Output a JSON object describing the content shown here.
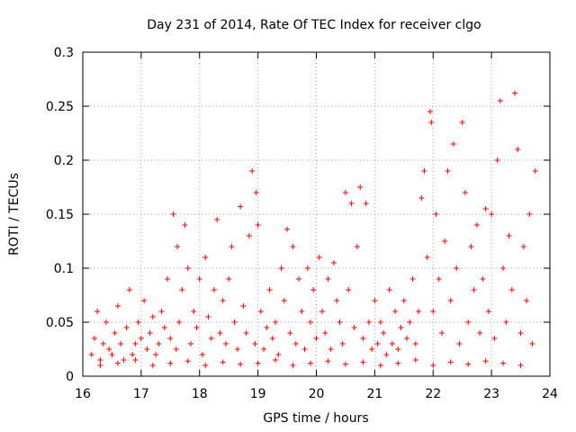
{
  "chart_data": {
    "type": "scatter",
    "title": "Day 231 of 2014, Rate Of TEC Index for receiver clgo",
    "xlabel": "GPS time / hours",
    "ylabel": "ROTI / TECUs",
    "xlim": [
      16,
      24
    ],
    "ylim": [
      0,
      0.3
    ],
    "x_ticks": [
      16,
      17,
      18,
      19,
      20,
      21,
      22,
      23,
      24
    ],
    "y_ticks": [
      0,
      0.05,
      0.1,
      0.15,
      0.2,
      0.25,
      0.3
    ],
    "x_tick_labels": [
      "16",
      "17",
      "18",
      "19",
      "20",
      "21",
      "22",
      "23",
      "24"
    ],
    "y_tick_labels": [
      "0",
      "0.05",
      "0.1",
      "0.15",
      "0.2",
      "0.25",
      "0.3"
    ],
    "grid": true,
    "marker": "+",
    "color": "#ff0000",
    "series": [
      {
        "name": "ROTI",
        "x": [
          16.15,
          16.2,
          16.25,
          16.3,
          16.35,
          16.4,
          16.45,
          16.5,
          16.55,
          16.6,
          16.65,
          16.7,
          16.75,
          16.8,
          16.85,
          16.9,
          16.95,
          17.0,
          17.05,
          17.1,
          17.15,
          17.2,
          17.25,
          17.3,
          17.35,
          17.4,
          17.45,
          17.5,
          17.55,
          17.6,
          17.62,
          17.65,
          17.7,
          17.75,
          17.8,
          17.85,
          17.9,
          17.95,
          18.0,
          18.05,
          18.1,
          18.15,
          18.2,
          18.25,
          18.3,
          18.35,
          18.4,
          18.45,
          18.5,
          18.55,
          18.6,
          18.65,
          18.7,
          18.75,
          18.8,
          18.85,
          18.9,
          18.95,
          18.97,
          19.0,
          19.05,
          19.1,
          19.15,
          19.2,
          19.25,
          19.3,
          19.35,
          19.4,
          19.45,
          19.5,
          19.55,
          19.6,
          19.65,
          19.7,
          19.75,
          19.8,
          19.85,
          19.9,
          19.95,
          20.0,
          20.05,
          20.1,
          20.15,
          20.2,
          20.25,
          20.3,
          20.35,
          20.4,
          20.45,
          20.5,
          20.55,
          20.6,
          20.65,
          20.7,
          20.75,
          20.8,
          20.85,
          20.9,
          20.95,
          21.0,
          21.05,
          21.1,
          21.15,
          21.2,
          21.25,
          21.3,
          21.35,
          21.4,
          21.45,
          21.5,
          21.55,
          21.6,
          21.65,
          21.7,
          21.75,
          21.8,
          21.85,
          21.9,
          21.95,
          21.97,
          22.0,
          22.05,
          22.1,
          22.15,
          22.2,
          22.25,
          22.3,
          22.35,
          22.4,
          22.45,
          22.5,
          22.55,
          22.6,
          22.65,
          22.7,
          22.75,
          22.8,
          22.85,
          22.9,
          22.95,
          23.0,
          23.05,
          23.1,
          23.15,
          23.2,
          23.25,
          23.3,
          23.35,
          23.4,
          23.45,
          23.5,
          23.55,
          23.6,
          23.65,
          23.7,
          23.75,
          16.3,
          16.6,
          16.9,
          17.2,
          17.5,
          17.8,
          18.1,
          18.4,
          18.7,
          19.0,
          19.3,
          19.6,
          19.9,
          20.2,
          20.5,
          20.8,
          21.1,
          21.4,
          21.7,
          22.0,
          22.3,
          22.6,
          22.9,
          23.2,
          23.5
        ],
        "y": [
          0.02,
          0.035,
          0.06,
          0.015,
          0.03,
          0.05,
          0.025,
          0.02,
          0.04,
          0.065,
          0.03,
          0.015,
          0.045,
          0.08,
          0.02,
          0.03,
          0.05,
          0.035,
          0.07,
          0.025,
          0.04,
          0.055,
          0.02,
          0.03,
          0.06,
          0.045,
          0.09,
          0.035,
          0.15,
          0.025,
          0.12,
          0.05,
          0.08,
          0.14,
          0.1,
          0.03,
          0.06,
          0.045,
          0.09,
          0.02,
          0.11,
          0.055,
          0.035,
          0.08,
          0.145,
          0.04,
          0.07,
          0.03,
          0.09,
          0.12,
          0.05,
          0.025,
          0.157,
          0.065,
          0.04,
          0.13,
          0.19,
          0.03,
          0.17,
          0.14,
          0.06,
          0.025,
          0.045,
          0.08,
          0.035,
          0.05,
          0.02,
          0.1,
          0.07,
          0.136,
          0.04,
          0.12,
          0.03,
          0.09,
          0.06,
          0.025,
          0.1,
          0.05,
          0.08,
          0.035,
          0.11,
          0.06,
          0.04,
          0.09,
          0.025,
          0.105,
          0.07,
          0.05,
          0.03,
          0.17,
          0.08,
          0.16,
          0.045,
          0.12,
          0.175,
          0.035,
          0.16,
          0.05,
          0.025,
          0.07,
          0.03,
          0.05,
          0.04,
          0.02,
          0.08,
          0.03,
          0.06,
          0.025,
          0.045,
          0.07,
          0.035,
          0.05,
          0.09,
          0.03,
          0.06,
          0.165,
          0.19,
          0.11,
          0.245,
          0.235,
          0.06,
          0.15,
          0.09,
          0.04,
          0.125,
          0.19,
          0.07,
          0.215,
          0.1,
          0.03,
          0.235,
          0.17,
          0.05,
          0.12,
          0.08,
          0.14,
          0.04,
          0.09,
          0.155,
          0.06,
          0.15,
          0.035,
          0.2,
          0.255,
          0.1,
          0.05,
          0.13,
          0.08,
          0.262,
          0.21,
          0.04,
          0.12,
          0.07,
          0.15,
          0.03,
          0.19,
          0.01,
          0.012,
          0.015,
          0.01,
          0.012,
          0.014,
          0.01,
          0.013,
          0.011,
          0.012,
          0.015,
          0.01,
          0.012,
          0.014,
          0.011,
          0.013,
          0.01,
          0.012,
          0.015,
          0.01,
          0.013,
          0.011,
          0.014,
          0.012,
          0.01
        ]
      }
    ]
  }
}
